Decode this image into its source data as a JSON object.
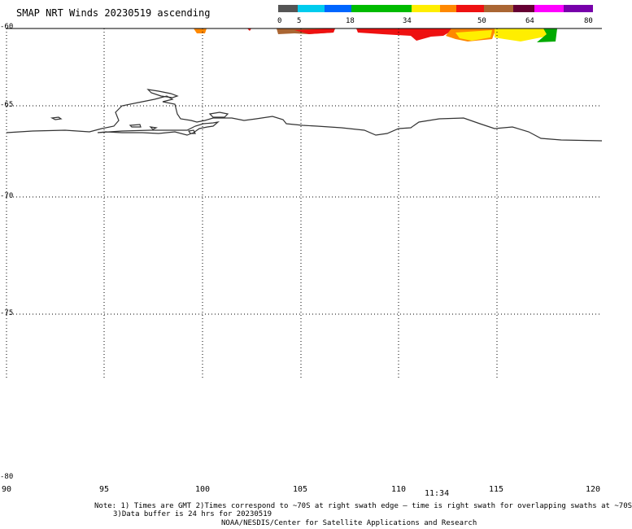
{
  "header": {
    "title": "SMAP NRT Winds 20230519 ascending"
  },
  "legend": {
    "ticks": [
      "0",
      "5",
      "18",
      "34",
      "50",
      "64",
      "80"
    ],
    "colors": [
      "#555555",
      "#00ccee",
      "#0066ff",
      "#00bb00",
      "#ffee00",
      "#ff8800",
      "#ee1111",
      "#aa6633",
      "#660033",
      "#ff00ff",
      "#7700aa"
    ]
  },
  "axes": {
    "lat_labels": [
      "-60",
      "-65",
      "-70",
      "-75",
      "-80"
    ],
    "lon_labels": [
      "90",
      "95",
      "100",
      "105",
      "110",
      "115",
      "120"
    ]
  },
  "swath_time": "11:34",
  "notes": {
    "line1": "Note: 1) Times are GMT 2)Times correspond to ~70S at right swath edge — time is right swath for overlapping swaths at ~70S",
    "line2": "3)Data buffer is 24 hrs for 20230519",
    "line3": "NOAA/NESDIS/Center for Satellite Applications and Research"
  }
}
